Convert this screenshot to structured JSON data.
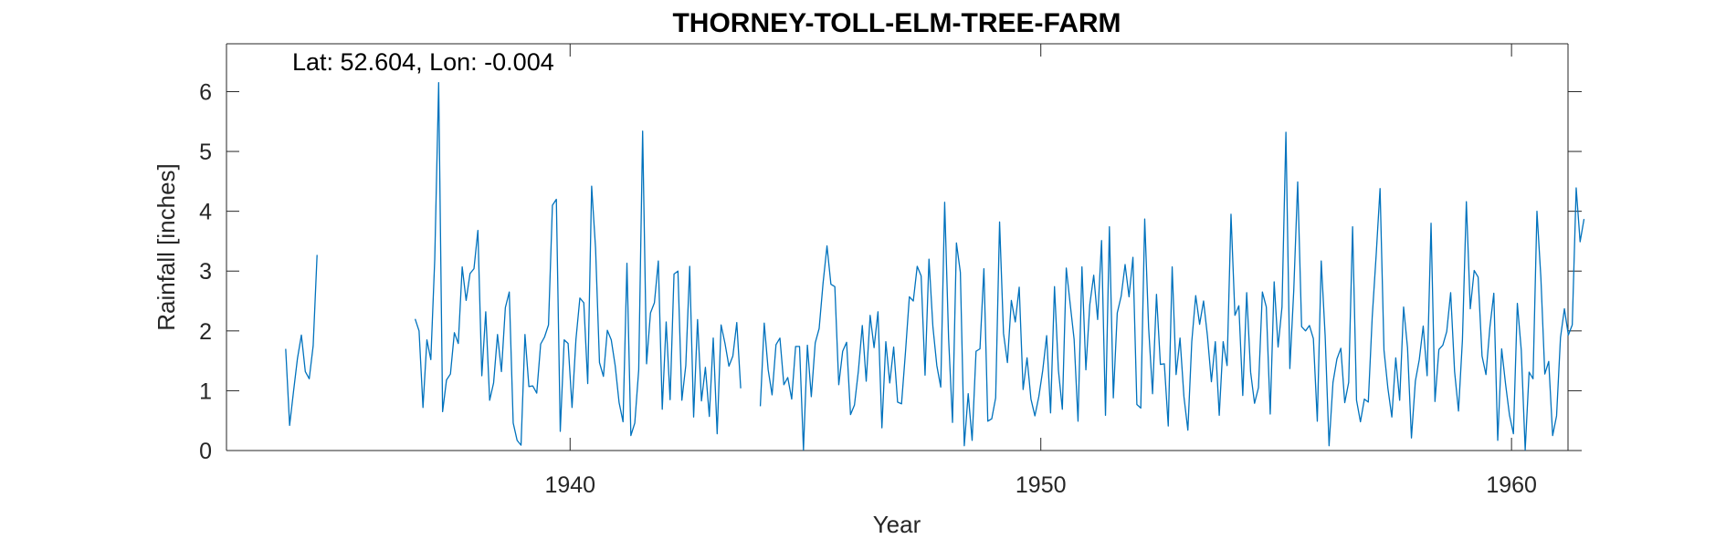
{
  "chart_data": {
    "type": "line",
    "title": "THORNEY-TOLL-ELM-TREE-FARM",
    "annotation": "Lat: 52.604, Lon: -0.004",
    "xlabel": "Year",
    "ylabel": "Rainfall [inches]",
    "xlim": [
      1932.7,
      1961.2
    ],
    "ylim": [
      0,
      6.8
    ],
    "xticks": [
      1940,
      1950,
      1960
    ],
    "yticks": [
      0,
      1,
      2,
      3,
      4,
      5,
      6
    ],
    "grid": false,
    "line_color": "#0072BD",
    "series": [
      {
        "start_year": 1933.958,
        "step": 0.08333,
        "values": [
          1.7,
          0.42,
          0.99,
          1.54,
          1.93,
          1.32,
          1.2,
          1.75,
          3.27,
          null,
          null,
          null,
          null,
          null,
          null,
          null,
          null,
          null,
          null,
          null,
          null,
          null,
          null,
          null,
          null,
          null,
          null,
          null,
          null,
          null,
          null,
          null,
          null,
          2.2,
          2.0,
          0.72,
          1.85,
          1.52,
          3.2,
          6.15,
          0.65,
          1.18,
          1.28,
          1.97,
          1.79,
          3.07,
          2.51,
          2.96,
          3.04,
          3.68,
          1.25,
          2.32,
          0.84,
          1.13,
          1.94,
          1.32,
          2.39,
          2.65,
          0.46,
          0.17,
          0.09,
          1.94,
          1.07,
          1.08,
          0.96,
          1.78,
          1.9,
          2.1,
          4.1,
          4.2,
          0.32,
          1.85,
          1.79,
          0.72,
          1.86,
          2.55,
          2.47,
          1.12,
          4.42,
          3.38,
          1.47,
          1.24,
          2.01,
          1.85,
          1.42,
          0.8,
          0.48,
          3.13,
          0.25,
          0.46,
          1.35,
          5.34,
          1.45,
          2.3,
          2.47,
          3.17,
          0.69,
          2.15,
          0.85,
          2.95,
          3.0,
          0.84,
          1.42,
          3.08,
          0.56,
          2.19,
          0.83,
          1.39,
          0.57,
          1.88,
          0.28,
          2.1,
          1.79,
          1.41,
          1.58,
          2.14,
          1.04,
          null,
          null,
          null,
          null,
          0.74,
          2.13,
          1.35,
          0.93,
          1.77,
          1.88,
          1.1,
          1.22,
          0.86,
          1.74,
          1.74,
          0.01,
          1.76,
          0.9,
          1.8,
          2.04,
          2.8,
          3.42,
          2.78,
          2.74,
          1.1,
          1.66,
          1.81,
          0.6,
          0.76,
          1.33,
          2.09,
          1.16,
          2.26,
          1.72,
          2.32,
          0.38,
          1.82,
          1.13,
          1.73,
          0.81,
          0.78,
          1.64,
          2.57,
          2.5,
          3.08,
          2.92,
          1.26,
          3.2,
          2.07,
          1.42,
          1.06,
          4.15,
          1.88,
          0.47,
          3.47,
          2.98,
          0.08,
          0.95,
          0.17,
          1.66,
          1.7,
          3.04,
          0.49,
          0.53,
          0.88,
          3.82,
          1.96,
          1.47,
          2.51,
          2.15,
          2.73,
          1.02,
          1.55,
          0.86,
          0.58,
          0.9,
          1.34,
          1.92,
          0.63,
          2.74,
          1.34,
          0.69,
          3.05,
          2.45,
          1.86,
          0.49,
          3.07,
          1.35,
          2.44,
          2.93,
          2.19,
          3.51,
          0.59,
          3.74,
          0.88,
          2.3,
          2.58,
          3.11,
          2.57,
          3.23,
          0.77,
          0.71,
          3.87,
          2.05,
          0.95,
          2.61,
          1.44,
          1.45,
          0.41,
          3.07,
          1.27,
          1.88,
          0.9,
          0.34,
          1.82,
          2.59,
          2.11,
          2.5,
          1.91,
          1.15,
          1.82,
          0.59,
          1.82,
          1.42,
          3.95,
          2.26,
          2.42,
          0.92,
          2.64,
          1.31,
          0.79,
          1.05,
          2.65,
          2.4,
          0.61,
          2.82,
          1.73,
          2.4,
          5.32,
          1.37,
          2.68,
          4.49,
          2.07,
          2.0,
          2.09,
          1.87,
          0.49,
          3.17,
          1.92,
          0.08,
          1.14,
          1.53,
          1.71,
          0.8,
          1.14,
          3.74,
          0.84,
          0.48,
          0.86,
          0.81,
          2.23,
          3.26,
          4.38,
          1.68,
          1.04,
          0.56,
          1.55,
          0.84,
          2.4,
          1.72,
          0.21,
          1.16,
          1.52,
          2.08,
          1.25,
          3.8,
          0.82,
          1.69,
          1.76,
          1.99,
          2.64,
          1.32,
          0.66,
          1.85,
          4.16,
          2.37,
          3.01,
          2.9,
          1.58,
          1.27,
          2.06,
          2.63,
          0.17,
          1.7,
          1.11,
          0.59,
          0.28,
          2.46,
          1.68,
          0.01,
          1.31,
          1.2,
          4.0,
          2.89,
          1.28,
          1.49,
          0.25,
          0.58,
          1.89,
          2.37,
          1.93,
          2.1,
          4.39,
          3.49,
          3.87
        ]
      }
    ]
  }
}
